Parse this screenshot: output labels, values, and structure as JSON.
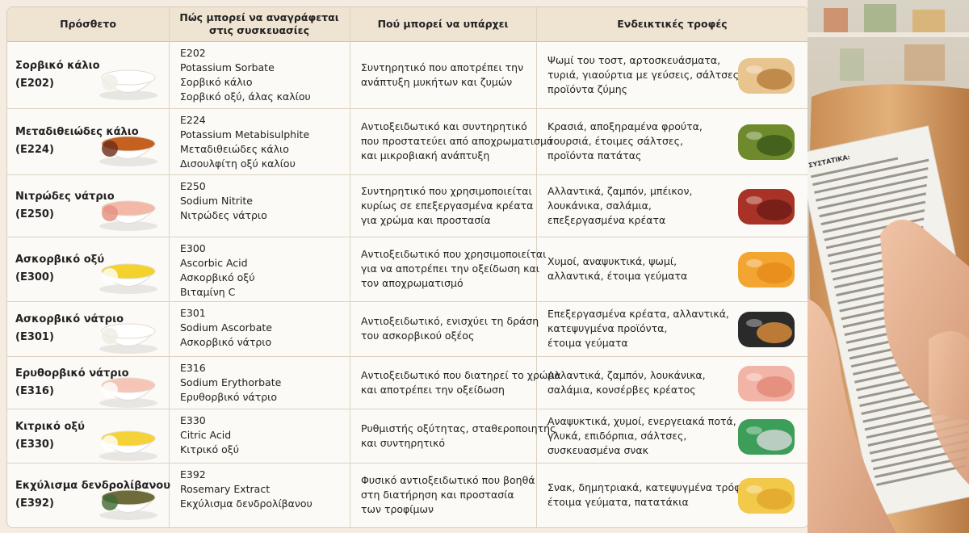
{
  "table": {
    "headers": [
      [
        "Πρόσθετο"
      ],
      [
        "Πώς μπορεί να αναγράφεται",
        "στις συσκευασίες"
      ],
      [
        "Πού μπορεί να υπάρχει"
      ],
      [
        "Ενδεικτικές τροφές"
      ]
    ],
    "rows": [
      [
        [
          "Σορβικό κάλιο",
          "(E202)"
        ],
        [
          "E202",
          "Potassium Sorbate",
          "Σορβικό κάλιο",
          "Σορβικό οξύ, άλας καλίου"
        ],
        [
          "Συντηρητικό που αποτρέπει την",
          "ανάπτυξη μυκήτων και ζυμών"
        ],
        [
          "Ψωμί του τοστ, αρτοσκευάσματα,",
          "τυριά, γιαούρτια με γεύσεις, σάλτσες,",
          "προϊόντα ζύμης"
        ]
      ],
      [
        [
          "Μεταδιθειώδες κάλιο",
          "(E224)"
        ],
        [
          "E224",
          "Potassium Metabisulphite",
          "Μεταδιθειώδες κάλιο",
          "Δισουλφίτη οξύ καλίου"
        ],
        [
          "Αντιοξειδωτικό και συντηρητικό",
          "που προστατεύει από αποχρωματισμό",
          "και μικροβιακή ανάπτυξη"
        ],
        [
          "Κρασιά, αποξηραμένα φρούτα,",
          "τουρσιά, έτοιμες σάλτσες,",
          "προϊόντα πατάτας"
        ]
      ],
      [
        [
          "Νιτρώδες νάτριο",
          "(E250)"
        ],
        [
          "E250",
          "Sodium Nitrite",
          "Νιτρώδες νάτριο"
        ],
        [
          "Συντηρητικό που χρησιμοποιείται",
          "κυρίως σε επεξεργασμένα κρέατα",
          "για χρώμα και προστασία"
        ],
        [
          "Αλλαντικά, ζαμπόν, μπέικον,",
          "λουκάνικα, σαλάμια,",
          "επεξεργασμένα κρέατα"
        ]
      ],
      [
        [
          "Ασκορβικό οξύ",
          "(E300)"
        ],
        [
          "E300",
          "Ascorbic Acid",
          "Ασκορβικό οξύ",
          "Βιταμίνη C"
        ],
        [
          "Αντιοξειδωτικό που χρησιμοποιείται",
          "για να αποτρέπει την οξείδωση και",
          "τον αποχρωματισμό"
        ],
        [
          "Χυμοί, αναψυκτικά, ψωμί,",
          "αλλαντικά, έτοιμα γεύματα"
        ]
      ],
      [
        [
          "Ασκορβικό νάτριο",
          "(E301)"
        ],
        [
          "E301",
          "Sodium Ascorbate",
          "Ασκορβικό νάτριο"
        ],
        [
          "Αντιοξειδωτικό, ενισχύει τη δράση",
          "του ασκορβικού οξέος"
        ],
        [
          "Επεξεργασμένα κρέατα, αλλαντικά,",
          "κατεψυγμένα προϊόντα,",
          "έτοιμα γεύματα"
        ]
      ],
      [
        [
          "Ερυθορβικό νάτριο",
          "(E316)"
        ],
        [
          "E316",
          "Sodium Erythorbate",
          "Ερυθορβικό νάτριο"
        ],
        [
          "Αντιοξειδωτικό που διατηρεί το χρώμα",
          "και αποτρέπει την οξείδωση"
        ],
        [
          "Αλλαντικά, ζαμπόν, λουκάνικα,",
          "σαλάμια, κονσέρβες κρέατος"
        ]
      ],
      [
        [
          "Κιτρικό οξύ",
          "(E330)"
        ],
        [
          "E330",
          "Citric Acid",
          "Κιτρικό οξύ"
        ],
        [
          "Ρυθμιστής οξύτητας, σταθεροποιητής",
          "και συντηρητικό"
        ],
        [
          "Αναψυκτικά, χυμοί, ενεργειακά ποτά,",
          "γλυκά, επιδόρπια, σάλτσες,",
          "συσκευασμένα σνακ"
        ]
      ],
      [
        [
          "Εκχύλισμα δενδρολίβανου",
          "(E392)"
        ],
        [
          "E392",
          "Rosemary Extract",
          "Εκχύλισμα δενδρολίβανου"
        ],
        [
          "Φυσικό αντιοξειδωτικό που βοηθά",
          "στη διατήρηση και προστασία",
          "των τροφίμων"
        ],
        [
          "Σνακ, δημητριακά, κατεψυγμένα τρόφιμα,",
          "έτοιμα γεύματα, πατατάκια"
        ]
      ]
    ]
  },
  "photo": {
    "label_title": "ΣΥΣΤΑΤΙΚΑ:"
  }
}
